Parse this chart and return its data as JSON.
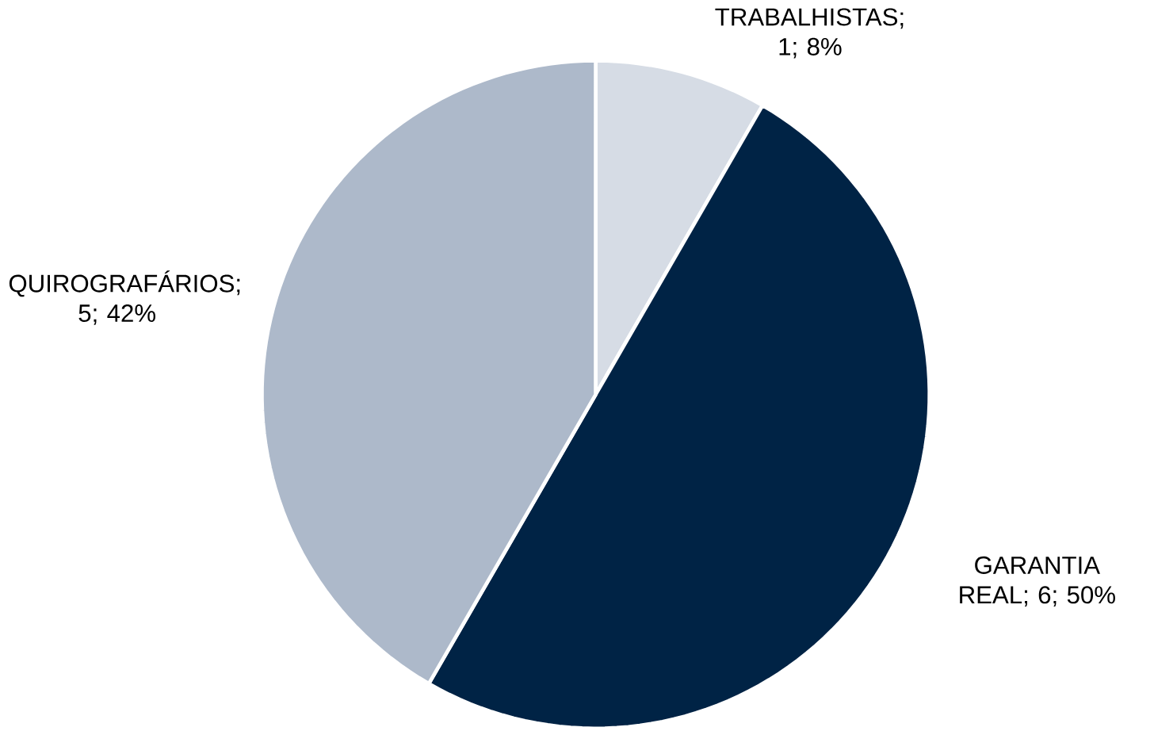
{
  "chart_data": {
    "type": "pie",
    "categories": [
      "TRABALHISTAS",
      "GARANTIA REAL",
      "QUIROGRAFÁRIOS"
    ],
    "values": [
      1,
      6,
      5
    ],
    "value_labels": [
      "; 1; 8%",
      "; 6; 50%",
      "; 5; 42%"
    ],
    "colors": [
      "#d6dce5",
      "#002345",
      "#adb9ca"
    ]
  }
}
